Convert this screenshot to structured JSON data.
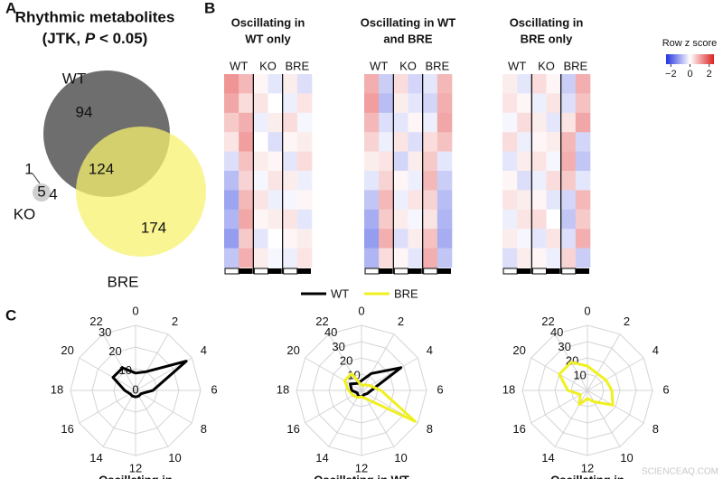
{
  "panel_letters": [
    "A",
    "B",
    "C"
  ],
  "watermark": "SCIENCEAQ.COM",
  "chart_data": [
    {
      "type": "venn",
      "title": "Rhythmic metabolites",
      "subtitle": [
        "(JTK, ",
        "P",
        " < 0.05)"
      ],
      "sets": [
        {
          "name": "WT",
          "color": "#6e6e6e"
        },
        {
          "name": "KO",
          "color": "#cfcfcf"
        },
        {
          "name": "BRE",
          "color": "#f6f26e"
        }
      ],
      "values": [
        94,
        124,
        174,
        1,
        5,
        4
      ]
    },
    {
      "type": "heatmap",
      "groups": [
        "WT",
        "KO",
        "BRE"
      ],
      "colorbar_title": "Row z score",
      "zlim": [
        -2.5,
        2.5
      ],
      "zticks": [
        {
          "value": -2,
          "label": "−2"
        },
        0,
        2
      ],
      "colors": [
        "#2233dd",
        "#ffffff",
        "#dd2222"
      ],
      "panels": [
        {
          "title": [
            "Oscillating in",
            "WT only"
          ],
          "values": [
            [
              1.2,
              0.8,
              0.1,
              -0.3,
              0.2,
              -0.4
            ],
            [
              1.0,
              0.4,
              0.3,
              0.0,
              -0.2,
              0.3
            ],
            [
              0.6,
              0.9,
              -0.2,
              0.2,
              0.4,
              -0.1
            ],
            [
              0.3,
              1.1,
              0.0,
              -0.4,
              0.1,
              0.2
            ],
            [
              -0.4,
              0.7,
              0.2,
              0.1,
              -0.3,
              0.4
            ],
            [
              -0.8,
              0.5,
              -0.1,
              0.3,
              0.2,
              -0.2
            ],
            [
              -1.1,
              0.8,
              0.3,
              -0.2,
              -0.1,
              0.1
            ],
            [
              -0.9,
              1.0,
              0.1,
              0.2,
              0.3,
              -0.3
            ],
            [
              -1.2,
              0.6,
              -0.3,
              0.0,
              0.1,
              0.2
            ],
            [
              -0.7,
              0.9,
              0.2,
              -0.1,
              -0.2,
              0.3
            ]
          ]
        },
        {
          "title": [
            "Oscillating in WT",
            "and BRE"
          ],
          "values": [
            [
              0.9,
              -0.6,
              0.4,
              -0.5,
              -0.3,
              0.8
            ],
            [
              1.1,
              -0.8,
              0.2,
              -0.3,
              -0.5,
              0.9
            ],
            [
              0.8,
              -0.4,
              -0.3,
              0.1,
              -0.2,
              1.0
            ],
            [
              0.5,
              -0.2,
              0.3,
              -0.4,
              0.4,
              0.7
            ],
            [
              0.2,
              0.3,
              -0.5,
              0.2,
              0.6,
              -0.3
            ],
            [
              -0.3,
              0.5,
              0.1,
              -0.2,
              0.8,
              -0.6
            ],
            [
              -0.7,
              0.8,
              -0.2,
              0.3,
              0.5,
              -0.8
            ],
            [
              -1.0,
              0.6,
              0.2,
              -0.1,
              0.3,
              -0.9
            ],
            [
              -1.2,
              0.9,
              -0.4,
              0.2,
              0.7,
              -1.0
            ],
            [
              -0.9,
              0.4,
              0.1,
              -0.3,
              0.9,
              -0.7
            ]
          ]
        },
        {
          "title": [
            "Oscillating in",
            "BRE only"
          ],
          "values": [
            [
              0.2,
              -0.3,
              0.4,
              0.1,
              -0.6,
              0.9
            ],
            [
              0.3,
              0.1,
              -0.2,
              0.3,
              -0.4,
              0.7
            ],
            [
              -0.1,
              0.4,
              0.2,
              -0.3,
              0.3,
              1.0
            ],
            [
              0.4,
              -0.2,
              0.1,
              0.2,
              0.8,
              -0.5
            ],
            [
              -0.3,
              0.2,
              0.3,
              -0.1,
              0.9,
              -0.7
            ],
            [
              0.1,
              -0.4,
              -0.2,
              0.4,
              0.6,
              -0.3
            ],
            [
              0.3,
              0.2,
              0.1,
              -0.3,
              -0.5,
              0.8
            ],
            [
              -0.2,
              0.3,
              0.4,
              0.0,
              -0.7,
              0.6
            ],
            [
              0.2,
              -0.1,
              -0.3,
              0.3,
              -0.4,
              0.9
            ],
            [
              -0.4,
              0.2,
              0.1,
              -0.2,
              0.5,
              -0.6
            ]
          ]
        }
      ]
    },
    {
      "type": "radar",
      "title": "Oscillating in",
      "x": [
        0,
        2,
        4,
        6,
        8,
        10,
        12,
        14,
        16,
        18,
        20,
        22
      ],
      "xlim": [
        0,
        24
      ],
      "xticks": [
        0,
        2,
        4,
        6,
        8,
        10,
        12,
        14,
        16,
        18,
        20,
        22
      ],
      "ylim": [
        0,
        30
      ],
      "yticks": [
        0,
        10,
        20,
        30
      ],
      "series": [
        {
          "name": "WT",
          "color": "#000000",
          "values": [
            8,
            10,
            27,
            8,
            3,
            3,
            3,
            3,
            3,
            5,
            12,
            12
          ]
        }
      ]
    },
    {
      "type": "radar",
      "title": "Oscillating in WT",
      "x": [
        0,
        2,
        4,
        6,
        8,
        10,
        12,
        14,
        16,
        18,
        20,
        22
      ],
      "xlim": [
        0,
        24
      ],
      "xticks": [
        0,
        2,
        4,
        6,
        8,
        10,
        12,
        14,
        16,
        18,
        20,
        22
      ],
      "ylim": [
        0,
        40
      ],
      "yticks": [
        10,
        20,
        30,
        40
      ],
      "series": [
        {
          "name": "WT",
          "color": "#000000",
          "values": [
            6,
            12,
            28,
            6,
            4,
            3,
            4,
            4,
            3,
            6,
            8,
            5
          ]
        },
        {
          "name": "BRE",
          "color": "#f0f020",
          "values": [
            3,
            4,
            6,
            12,
            38,
            6,
            4,
            5,
            6,
            8,
            12,
            12
          ]
        }
      ]
    },
    {
      "type": "radar",
      "title": "Oscillating in",
      "x": [
        0,
        2,
        4,
        6,
        8,
        10,
        12,
        14,
        16,
        18,
        20,
        22
      ],
      "xlim": [
        0,
        24
      ],
      "xticks": [
        0,
        2,
        4,
        6,
        8,
        10,
        12,
        14,
        16,
        18,
        20,
        22
      ],
      "ylim": [
        0,
        40
      ],
      "yticks": [
        10,
        20,
        30,
        40
      ],
      "series": [
        {
          "name": "BRE",
          "color": "#f0f020",
          "values": [
            15,
            12,
            13,
            15,
            18,
            8,
            5,
            10,
            5,
            12,
            20,
            20
          ]
        }
      ]
    }
  ]
}
